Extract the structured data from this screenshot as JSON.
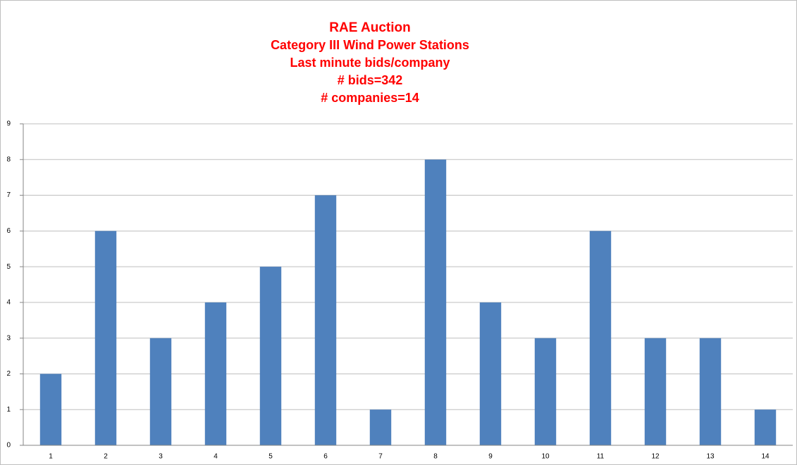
{
  "chart_data": {
    "type": "bar",
    "title": "RAE Auction",
    "subtitle": [
      "Category III Wind Power Stations",
      "Last minute bids/company",
      "# bids=342",
      "# companies=14"
    ],
    "categories": [
      "1",
      "2",
      "3",
      "4",
      "5",
      "6",
      "7",
      "8",
      "9",
      "10",
      "11",
      "12",
      "13",
      "14"
    ],
    "values": [
      2,
      6,
      3,
      4,
      5,
      7,
      1,
      8,
      4,
      3,
      6,
      3,
      3,
      1
    ],
    "color": "#4f81bd",
    "ylim": [
      0,
      9
    ],
    "yticks": [
      0,
      1,
      2,
      3,
      4,
      5,
      6,
      7,
      8,
      9
    ],
    "grid": true
  }
}
